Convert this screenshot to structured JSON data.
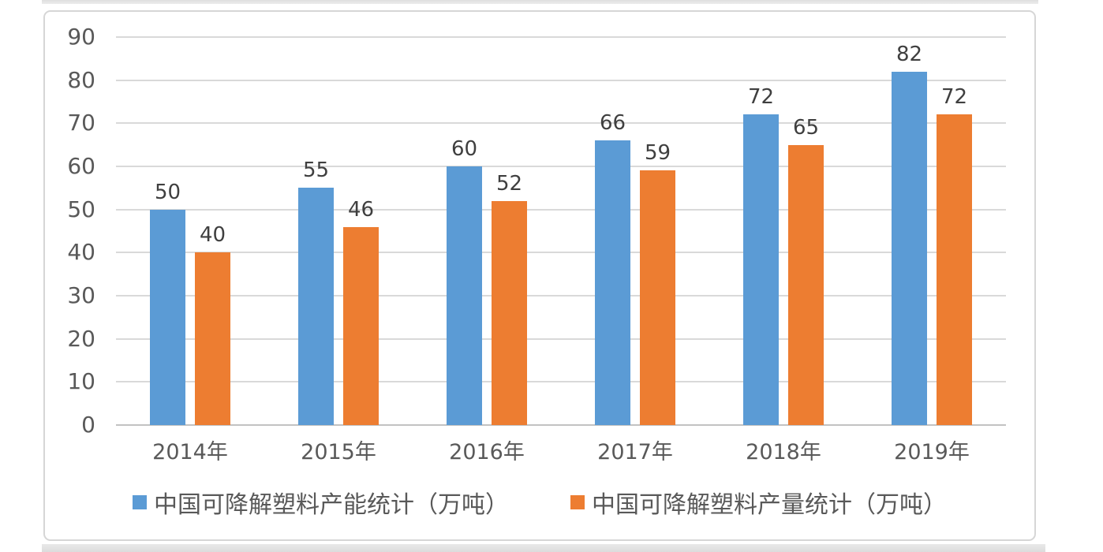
{
  "chart_data": {
    "type": "bar",
    "title": "",
    "xlabel": "",
    "ylabel": "",
    "categories": [
      "2014年",
      "2015年",
      "2016年",
      "2017年",
      "2018年",
      "2019年"
    ],
    "series": [
      {
        "name": "中国可降解塑料产能统计（万吨）",
        "color": "#5B9BD5",
        "values": [
          50,
          55,
          60,
          66,
          72,
          82
        ]
      },
      {
        "name": "中国可降解塑料产量统计（万吨）",
        "color": "#ED7D31",
        "values": [
          40,
          46,
          52,
          59,
          65,
          72
        ]
      }
    ],
    "ylim": [
      0,
      90
    ],
    "ytick_step": 10,
    "yticks": [
      "0",
      "10",
      "20",
      "30",
      "40",
      "50",
      "60",
      "70",
      "80",
      "90"
    ],
    "grid": true,
    "data_labels": true,
    "legend_position": "bottom"
  },
  "colors": {
    "gridline": "#d9d9d9",
    "axis_line": "#c2c2c2",
    "tick_text": "#595959",
    "data_label_text": "#3f3f3f",
    "legend_text": "#595959",
    "frame_border": "#d6d6d6",
    "background": "#ffffff"
  }
}
